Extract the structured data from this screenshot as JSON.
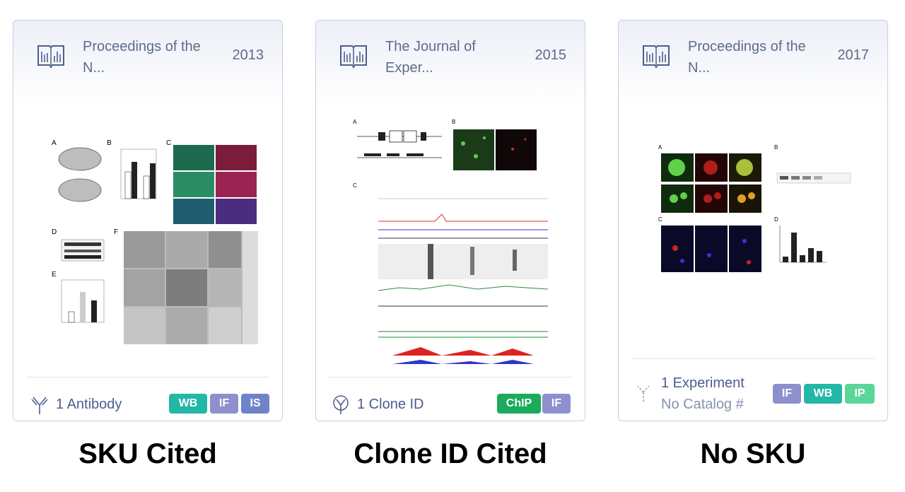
{
  "cards": [
    {
      "journal": "Proceedings of the N...",
      "year": "2013",
      "footer_text": "1 Antibody",
      "footer_icon": "antibody-icon",
      "badges": [
        {
          "label": "WB",
          "color": "#22b7a7"
        },
        {
          "label": "IF",
          "color": "#8e8fcd"
        },
        {
          "label": "IS",
          "color": "#6f83c9"
        }
      ],
      "caption": "SKU Cited"
    },
    {
      "journal": "The Journal of Exper...",
      "year": "2015",
      "footer_text": "1 Clone ID",
      "footer_icon": "clone-antibody-icon",
      "badges": [
        {
          "label": "ChIP",
          "color": "#1aab5c"
        },
        {
          "label": "IF",
          "color": "#8e8fcd"
        }
      ],
      "caption": "Clone ID Cited"
    },
    {
      "journal": "Proceedings of the N...",
      "year": "2017",
      "footer_text": "1 Experiment",
      "footer_subtext": "No Catalog #",
      "footer_icon": "experiment-antibody-icon",
      "badges": [
        {
          "label": "IF",
          "color": "#8e8fcd"
        },
        {
          "label": "WB",
          "color": "#22b7a7"
        },
        {
          "label": "IP",
          "color": "#5ad699"
        }
      ],
      "caption": "No SKU"
    }
  ],
  "figure_labels": {
    "card1": [
      "A",
      "B",
      "C",
      "D",
      "E",
      "F"
    ],
    "card2": [
      "A",
      "B",
      "C"
    ],
    "card3": [
      "A",
      "B",
      "C",
      "D"
    ]
  }
}
